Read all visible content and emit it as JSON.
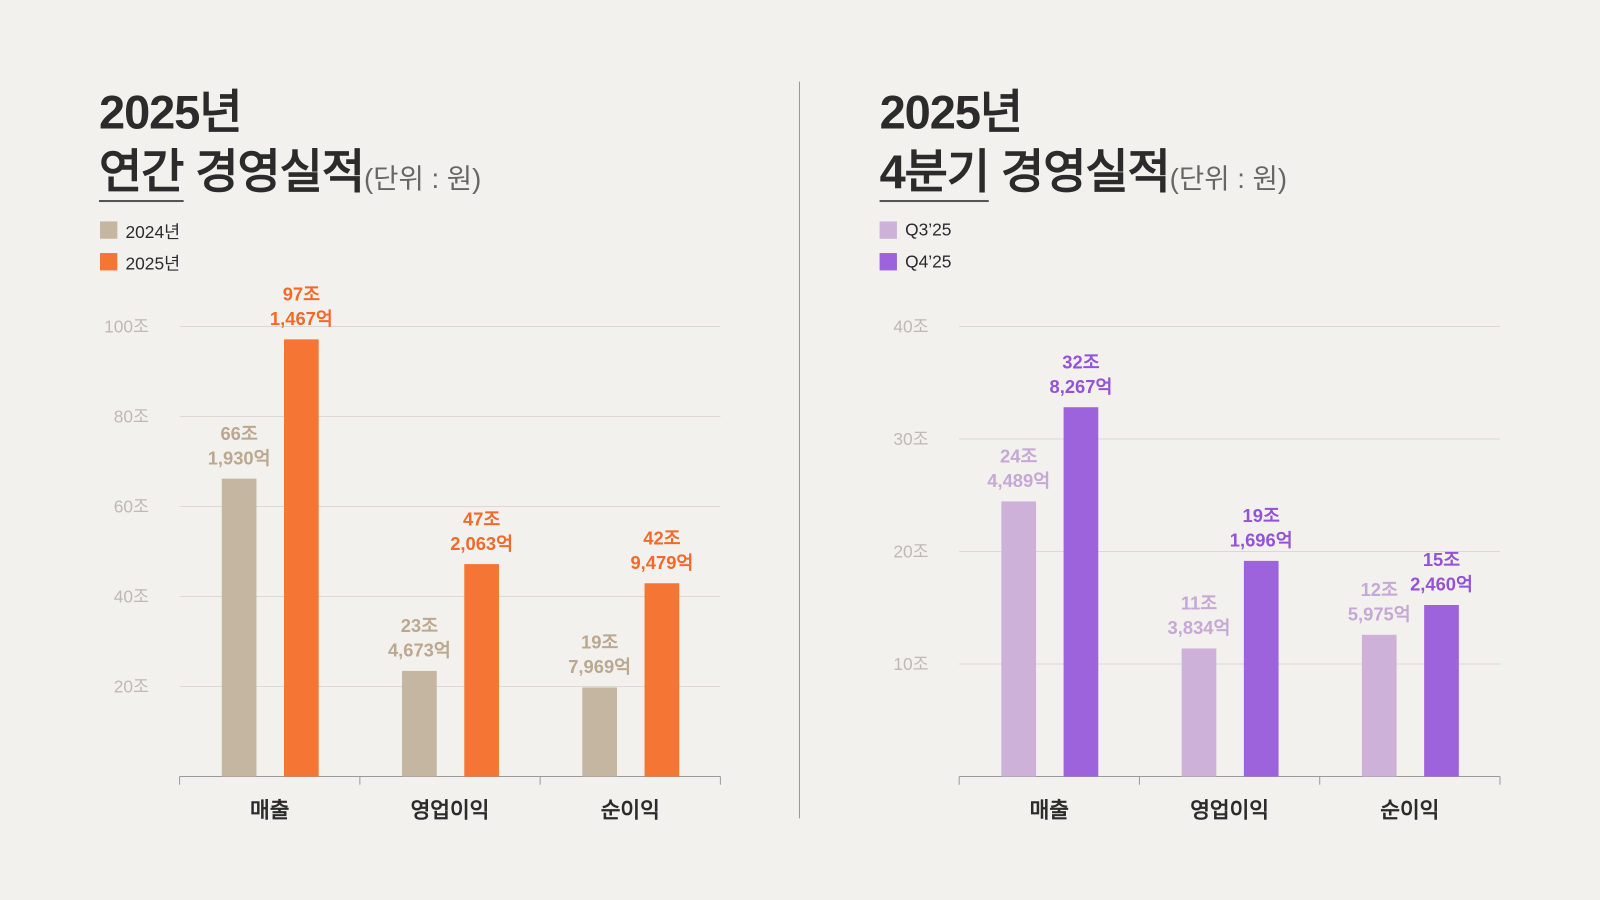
{
  "annual": {
    "title_line1": "2025년",
    "title_highlight": "연간",
    "title_rest": "경영실적",
    "unit": "(단위 : 원)"
  },
  "quarterly": {
    "title_line1": "2025년",
    "title_highlight": "4분기",
    "title_rest": "경영실적",
    "unit": "(단위 : 원)"
  },
  "chart_data": [
    {
      "type": "bar",
      "categories": [
        "매출",
        "영업이익",
        "순이익"
      ],
      "ylim": [
        0,
        100
      ],
      "yticks": [
        20,
        40,
        60,
        80,
        100
      ],
      "ytick_labels": [
        "20조",
        "40조",
        "60조",
        "80조",
        "100조"
      ],
      "grid": true,
      "legend": "top-left",
      "series": [
        {
          "name": "2024년",
          "color": "#C4B6A1",
          "label_color": "#BBA88E",
          "values": [
            66.193,
            23.4673,
            19.7969
          ],
          "labels": [
            [
              "66조",
              "1,930억"
            ],
            [
              "23조",
              "4,673억"
            ],
            [
              "19조",
              "7,969억"
            ]
          ]
        },
        {
          "name": "2025년",
          "color": "#F57535",
          "label_color": "#F26A2A",
          "values": [
            97.1467,
            47.2063,
            42.9479
          ],
          "labels": [
            [
              "97조",
              "1,467억"
            ],
            [
              "47조",
              "2,063억"
            ],
            [
              "42조",
              "9,479억"
            ]
          ]
        }
      ]
    },
    {
      "type": "bar",
      "categories": [
        "매출",
        "영업이익",
        "순이익"
      ],
      "ylim": [
        0,
        40
      ],
      "yticks": [
        10,
        20,
        30,
        40
      ],
      "ytick_labels": [
        "10조",
        "20조",
        "30조",
        "40조"
      ],
      "grid": true,
      "legend": "top-left",
      "series": [
        {
          "name": "Q3’25",
          "color": "#CDB1D8",
          "label_color": "#C6A8D6",
          "values": [
            24.4489,
            11.3834,
            12.5975
          ],
          "labels": [
            [
              "24조",
              "4,489억"
            ],
            [
              "11조",
              "3,834억"
            ],
            [
              "12조",
              "5,975억"
            ]
          ]
        },
        {
          "name": "Q4’25",
          "color": "#9D63DC",
          "label_color": "#9452D8",
          "values": [
            32.8267,
            19.1696,
            15.246
          ],
          "labels": [
            [
              "32조",
              "8,267억"
            ],
            [
              "19조",
              "1,696억"
            ],
            [
              "15조",
              "2,460억"
            ]
          ]
        }
      ]
    }
  ]
}
